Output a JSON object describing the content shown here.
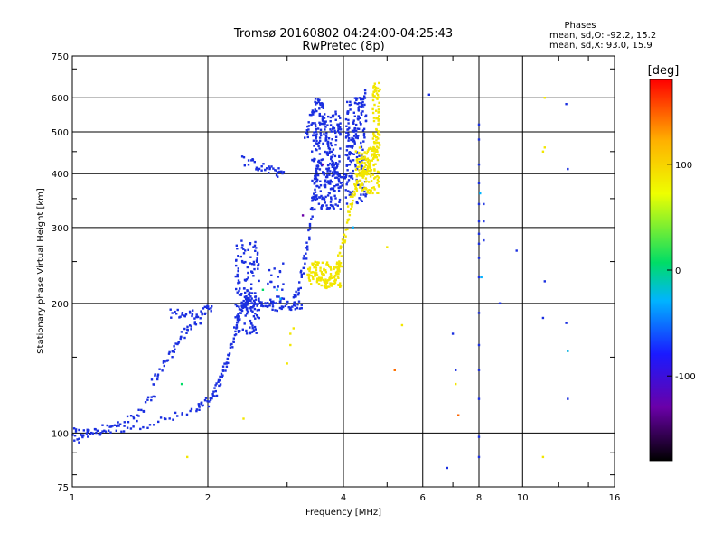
{
  "chart_data": {
    "type": "scatter",
    "title": "Tromsø 20160802 04:24:00-04:25:43",
    "subtitle": "RwPretec (8p)",
    "stats": {
      "header": "Phases",
      "line1": "mean, sd,O: -92.2, 15.2",
      "line2": "mean, sd,X:  93.0, 15.9"
    },
    "xlabel": "Frequency [MHz]",
    "ylabel": "Stationary phase Virtual Height [km]",
    "xscale": "log",
    "yscale": "log",
    "xlim": [
      1,
      16
    ],
    "ylim": [
      75,
      750
    ],
    "xticks": [
      1,
      2,
      4,
      6,
      8,
      10,
      16
    ],
    "xtick_labels": [
      "1",
      "2",
      "4",
      "6",
      "8",
      "10",
      "16"
    ],
    "yticks": [
      75,
      100,
      200,
      300,
      400,
      500,
      600,
      750
    ],
    "ytick_labels": [
      "75",
      "100",
      "200",
      "300",
      "400",
      "500",
      "600",
      "750"
    ],
    "grid": true,
    "colorbar": {
      "label": "[deg]",
      "range": [
        -180,
        180
      ],
      "ticks": [
        100,
        0,
        -100
      ],
      "tick_labels": [
        "100",
        "0",
        "-100"
      ],
      "colors": [
        "#000000",
        "#6a00a8",
        "#1a1aff",
        "#00b4ff",
        "#00dd66",
        "#eeff00",
        "#ffb000",
        "#ff0000"
      ]
    },
    "series": [
      {
        "phase": "O",
        "color": "#1a2fe0",
        "segments": [
          {
            "f": [
              1.0,
              1.1,
              1.3,
              1.6,
              1.9,
              1.98
            ],
            "h": [
              100,
              100,
              103,
              107,
              113,
              118
            ]
          },
          {
            "f": [
              1.65,
              1.8,
              1.95,
              2.05
            ],
            "h": [
              190,
              188,
              190,
              196
            ]
          },
          {
            "f": [
              2.0,
              2.08,
              2.15,
              2.22,
              2.3,
              2.35,
              2.4,
              2.45,
              2.5
            ],
            "h": [
              118,
              125,
              135,
              150,
              170,
              190,
              200,
              205,
              210
            ]
          },
          {
            "f": [
              2.4,
              2.55,
              2.7,
              2.9,
              3.1,
              3.25
            ],
            "h": [
              200,
              198,
              197,
              197,
              198,
              200
            ]
          },
          {
            "f": [
              3.1,
              3.2,
              3.3,
              3.4,
              3.45,
              3.5
            ],
            "h": [
              200,
              220,
              260,
              320,
              380,
              420
            ]
          },
          {
            "f": [
              3.3,
              3.4,
              3.5,
              3.6,
              3.7,
              3.8,
              3.9
            ],
            "h": [
              480,
              550,
              600,
              560,
              470,
              420,
              400
            ]
          },
          {
            "f": [
              3.7,
              3.9,
              4.05,
              4.2,
              4.35,
              4.5
            ],
            "h": [
              380,
              370,
              400,
              470,
              560,
              630
            ]
          },
          {
            "f": [
              2.4,
              2.6,
              2.8,
              2.95
            ],
            "h": [
              430,
              415,
              405,
              400
            ]
          },
          {
            "f": [
              1.0,
              1.1,
              1.25,
              1.4,
              1.55
            ],
            "h": [
              96,
              100,
              104,
              110,
              125
            ]
          },
          {
            "f": [
              1.5,
              1.6,
              1.7,
              1.8,
              1.95
            ],
            "h": [
              130,
              145,
              160,
              175,
              185
            ]
          }
        ],
        "clouds": [
          {
            "f": [
              2.3,
              2.6
            ],
            "h": [
              170,
              280
            ],
            "n": 140
          },
          {
            "f": [
              3.4,
              3.95
            ],
            "h": [
              330,
              560
            ],
            "n": 240
          },
          {
            "f": [
              4.05,
              4.5
            ],
            "h": [
              340,
              600
            ],
            "n": 160
          },
          {
            "f": [
              2.7,
              2.95
            ],
            "h": [
              200,
              250
            ],
            "n": 25
          }
        ],
        "scatter": [
          {
            "f": 8.0,
            "h": 520
          },
          {
            "f": 8.0,
            "h": 480
          },
          {
            "f": 8.0,
            "h": 420
          },
          {
            "f": 8.0,
            "h": 380
          },
          {
            "f": 8.0,
            "h": 340
          },
          {
            "f": 8.0,
            "h": 310
          },
          {
            "f": 8.0,
            "h": 290
          },
          {
            "f": 8.0,
            "h": 275
          },
          {
            "f": 8.0,
            "h": 255
          },
          {
            "f": 8.0,
            "h": 230
          },
          {
            "f": 8.0,
            "h": 190
          },
          {
            "f": 8.0,
            "h": 160
          },
          {
            "f": 8.0,
            "h": 140
          },
          {
            "f": 8.0,
            "h": 120
          },
          {
            "f": 8.0,
            "h": 98
          },
          {
            "f": 8.0,
            "h": 88
          },
          {
            "f": 8.2,
            "h": 340
          },
          {
            "f": 8.2,
            "h": 310
          },
          {
            "f": 8.2,
            "h": 280
          },
          {
            "f": 6.2,
            "h": 610
          },
          {
            "f": 9.7,
            "h": 265
          },
          {
            "f": 12.5,
            "h": 580
          },
          {
            "f": 12.6,
            "h": 410
          },
          {
            "f": 12.5,
            "h": 180
          },
          {
            "f": 12.6,
            "h": 120
          },
          {
            "f": 11.2,
            "h": 225
          },
          {
            "f": 6.8,
            "h": 83
          },
          {
            "f": 7.0,
            "h": 170
          },
          {
            "f": 7.1,
            "h": 140
          },
          {
            "f": 8.9,
            "h": 200
          },
          {
            "f": 11.1,
            "h": 185
          }
        ]
      },
      {
        "phase": "X",
        "color": "#f2e600",
        "segments": [
          {
            "f": [
              3.35,
              3.5,
              3.65,
              3.8,
              3.9,
              3.95
            ],
            "h": [
              235,
              228,
              222,
              225,
              235,
              245
            ]
          },
          {
            "f": [
              3.9,
              4.0,
              4.1,
              4.2,
              4.3
            ],
            "h": [
              250,
              280,
              320,
              360,
              390
            ]
          },
          {
            "f": [
              4.3,
              4.45,
              4.6,
              4.75,
              4.8
            ],
            "h": [
              390,
              400,
              420,
              500,
              640
            ]
          }
        ],
        "clouds": [
          {
            "f": [
              3.35,
              3.95
            ],
            "h": [
              218,
              250
            ],
            "n": 90
          },
          {
            "f": [
              4.25,
              4.8
            ],
            "h": [
              360,
              460
            ],
            "n": 130
          },
          {
            "f": [
              4.65,
              4.82
            ],
            "h": [
              430,
              650
            ],
            "n": 60
          }
        ],
        "scatter": [
          {
            "f": 3.05,
            "h": 170
          },
          {
            "f": 3.05,
            "h": 160
          },
          {
            "f": 3.0,
            "h": 145
          },
          {
            "f": 3.1,
            "h": 175
          },
          {
            "f": 11.2,
            "h": 600
          },
          {
            "f": 11.2,
            "h": 460
          },
          {
            "f": 11.1,
            "h": 450
          },
          {
            "f": 11.1,
            "h": 88
          },
          {
            "f": 1.8,
            "h": 88
          },
          {
            "f": 2.4,
            "h": 108
          },
          {
            "f": 5.2,
            "h": 140
          },
          {
            "f": 7.1,
            "h": 130
          },
          {
            "f": 5.0,
            "h": 270
          },
          {
            "f": 5.4,
            "h": 178
          },
          {
            "f": 12.6,
            "h": 155
          }
        ]
      }
    ]
  }
}
